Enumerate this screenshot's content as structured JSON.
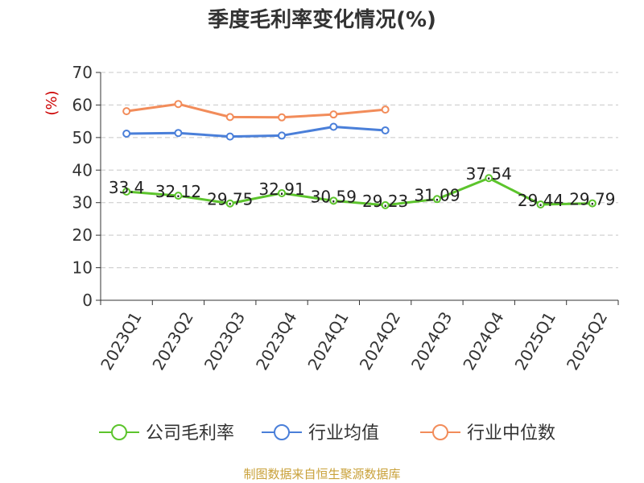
{
  "chart_data": {
    "type": "line",
    "title": "季度毛利率变化情况(%)",
    "ylabel": "(%)",
    "source": "制图数据来自恒生聚源数据库",
    "categories": [
      "2023Q1",
      "2023Q2",
      "2023Q3",
      "2023Q4",
      "2024Q1",
      "2024Q2",
      "2024Q3",
      "2024Q4",
      "2025Q1",
      "2025Q2"
    ],
    "yticks": [
      "0",
      "10",
      "20",
      "30",
      "40",
      "50",
      "60",
      "70"
    ],
    "ylim": [
      0,
      70
    ],
    "grid": true,
    "legend_position": "bottom",
    "series": [
      {
        "name": "公司毛利率",
        "color": "#5cc42c",
        "values": [
          33.4,
          32.12,
          29.75,
          32.91,
          30.59,
          29.23,
          31.09,
          37.54,
          29.44,
          29.79
        ],
        "labels": [
          "33.4",
          "32.12",
          "29.75",
          "32.91",
          "30.59",
          "29.23",
          "31.09",
          "37.54",
          "29.44",
          "29.79"
        ]
      },
      {
        "name": "行业均值",
        "color": "#4a7fd9",
        "values": [
          51.2,
          51.4,
          50.3,
          50.6,
          53.3,
          52.2,
          null,
          null,
          null,
          null
        ]
      },
      {
        "name": "行业中位数",
        "color": "#f28c5a",
        "values": [
          58.1,
          60.3,
          56.3,
          56.2,
          57.1,
          58.6,
          null,
          null,
          null,
          null
        ]
      }
    ]
  }
}
